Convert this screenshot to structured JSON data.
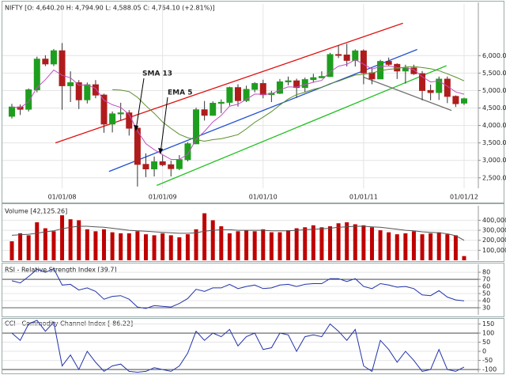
{
  "chart_data": [
    {
      "type": "candlestick",
      "title": "NIFTY [O: 4,640.20 H: 4,794.90 L: 4,588.05 C: 4,764.10 (+2.81%)]",
      "categories": [
        null,
        null,
        null,
        null,
        null,
        null,
        "01/01/08",
        null,
        null,
        null,
        null,
        null,
        null,
        null,
        null,
        null,
        null,
        null,
        "01/01/09",
        null,
        null,
        null,
        null,
        null,
        null,
        null,
        null,
        null,
        null,
        null,
        "01/01/10",
        null,
        null,
        null,
        null,
        null,
        null,
        null,
        null,
        null,
        null,
        null,
        "01/01/11",
        null,
        null,
        null,
        null,
        null,
        null,
        null,
        null,
        null,
        null,
        null,
        "01/01/12"
      ],
      "open": [
        4263,
        4528,
        4464,
        5021,
        5900,
        5762,
        6139,
        5137,
        5224,
        4735,
        5166,
        4870,
        4040,
        4332,
        4360,
        3921,
        2885,
        2755,
        2959,
        2874,
        2763,
        3021,
        3474,
        4449,
        4291,
        4636,
        4662,
        5084,
        4712,
        5033,
        5201,
        4882,
        4922,
        5249,
        5278,
        5087,
        5313,
        5368,
        5402,
        6030,
        6018,
        5863,
        6135,
        5506,
        5333,
        5834,
        5750,
        5560,
        5647,
        5482,
        5001,
        4943,
        5327,
        4832,
        4640.2
      ],
      "high": [
        4620,
        4600,
        5060,
        5970,
        6010,
        6190,
        6360,
        5550,
        5300,
        5230,
        5300,
        4910,
        4400,
        4650,
        4440,
        3950,
        3200,
        3110,
        3150,
        2990,
        3150,
        3520,
        4510,
        4700,
        4690,
        4745,
        5110,
        5180,
        5140,
        5240,
        5310,
        4990,
        5330,
        5400,
        5340,
        5370,
        5480,
        5550,
        6080,
        6290,
        6340,
        6180,
        6180,
        5640,
        5880,
        5945,
        5780,
        5740,
        5740,
        5560,
        5170,
        5400,
        5400,
        4860,
        4794.9
      ],
      "low": [
        4200,
        4300,
        4400,
        4950,
        5700,
        5700,
        4450,
        4670,
        4470,
        4630,
        4780,
        3790,
        3800,
        4150,
        3710,
        2250,
        2520,
        2540,
        2830,
        2540,
        2720,
        2970,
        3470,
        4140,
        4280,
        4350,
        4570,
        4540,
        4670,
        4950,
        4780,
        4670,
        4900,
        5150,
        4790,
        4960,
        5230,
        5350,
        5390,
        5930,
        5690,
        5690,
        5180,
        5180,
        5350,
        5690,
        5330,
        5200,
        5450,
        4720,
        4720,
        4730,
        4640,
        4530,
        4588.05
      ],
      "close": [
        4528,
        4464,
        5021,
        5900,
        5762,
        6139,
        5137,
        5224,
        4735,
        5166,
        4870,
        4040,
        4332,
        4360,
        3921,
        2885,
        2755,
        2959,
        2874,
        2763,
        3021,
        3474,
        4449,
        4291,
        4636,
        4662,
        5084,
        4712,
        5033,
        5201,
        4882,
        4922,
        5249,
        5278,
        5087,
        5313,
        5368,
        5402,
        6030,
        6018,
        5863,
        6135,
        5506,
        5333,
        5834,
        5750,
        5560,
        5647,
        5482,
        5001,
        4943,
        5327,
        4832,
        4624,
        4764.1
      ],
      "up_color": "#1e9e1e",
      "down_color": "#b01c1c",
      "series": [
        {
          "name": "SMA 13",
          "color": "#5a8f2a",
          "values": [
            null,
            null,
            null,
            null,
            null,
            null,
            null,
            null,
            null,
            null,
            null,
            null,
            5024,
            5012,
            4970,
            4805,
            4564,
            4348,
            4097,
            3914,
            3745,
            3648,
            3593,
            3548,
            3594,
            3619,
            3675,
            3736,
            3901,
            4089,
            4237,
            4395,
            4586,
            4759,
            4884,
            4950,
            5033,
            5092,
            5197,
            5269,
            5357,
            5442,
            5466,
            5500,
            5570,
            5609,
            5631,
            5674,
            5687,
            5659,
            5623,
            5569,
            5478,
            5383,
            5277
          ]
        },
        {
          "name": "EMA 5",
          "color": "#c050c0",
          "values": [
            4528,
            4507,
            4678,
            5085,
            5311,
            5587,
            5437,
            5366,
            5156,
            5159,
            5063,
            4722,
            4592,
            4515,
            4317,
            3840,
            3478,
            3305,
            3161,
            3028,
            3026,
            3175,
            3600,
            3830,
            4099,
            4287,
            4553,
            4606,
            4748,
            4899,
            4893,
            4903,
            5018,
            5105,
            5099,
            5170,
            5236,
            5291,
            5537,
            5697,
            5752,
            5880,
            5755,
            5614,
            5687,
            5708,
            5659,
            5655,
            5597,
            5398,
            5246,
            5273,
            5126,
            4959,
            4894
          ]
        }
      ],
      "trendlines": [
        {
          "color": "#e01010",
          "x": [
            5.2,
            46.7
          ],
          "values": [
            3500,
            6929
          ]
        },
        {
          "color": "#2050d0",
          "x": [
            11.6,
            48.4
          ],
          "values": [
            2681,
            6177
          ]
        },
        {
          "color": "#20c020",
          "x": [
            17.3,
            51.9
          ],
          "values": [
            2283,
            5712
          ]
        },
        {
          "color": "#707070",
          "x": [
            42,
            52.5
          ],
          "values": [
            5381,
            4429
          ]
        }
      ],
      "ylim": [
        2200,
        7480
      ],
      "yticks": [
        {
          "value": 2500,
          "label": "2,500.00"
        },
        {
          "value": 3000,
          "label": "3,000.00"
        },
        {
          "value": 3500,
          "label": "3,500.00"
        },
        {
          "value": 4000,
          "label": "4,000.00"
        },
        {
          "value": 4500,
          "label": "4,500.00"
        },
        {
          "value": 5000,
          "label": "5,000.00"
        },
        {
          "value": 5500,
          "label": "5,500.00"
        },
        {
          "value": 6000,
          "label": "6,000.00"
        }
      ],
      "grid": true
    },
    {
      "type": "bar",
      "title": "Volume [42,125.26]",
      "series": [
        {
          "name": "Volume",
          "color": "#c00000",
          "values": [
            190000,
            270000,
            250000,
            380000,
            320000,
            290000,
            450000,
            410000,
            400000,
            310000,
            290000,
            310000,
            280000,
            270000,
            270000,
            290000,
            260000,
            250000,
            270000,
            250000,
            230000,
            260000,
            310000,
            470000,
            400000,
            340000,
            270000,
            290000,
            300000,
            290000,
            310000,
            280000,
            280000,
            300000,
            320000,
            330000,
            350000,
            330000,
            340000,
            370000,
            380000,
            360000,
            350000,
            330000,
            300000,
            280000,
            260000,
            270000,
            290000,
            260000,
            270000,
            280000,
            260000,
            250000,
            42125.26
          ]
        },
        {
          "type": "line",
          "color": "#555555",
          "values": [
            250000,
            255000,
            260000,
            270000,
            285000,
            295000,
            315000,
            330000,
            340000,
            340000,
            335000,
            330000,
            320000,
            310000,
            300000,
            295000,
            290000,
            285000,
            280000,
            275000,
            270000,
            270000,
            275000,
            290000,
            300000,
            305000,
            305000,
            300000,
            300000,
            300000,
            300000,
            295000,
            295000,
            295000,
            300000,
            305000,
            310000,
            315000,
            320000,
            330000,
            335000,
            340000,
            340000,
            335000,
            330000,
            320000,
            310000,
            300000,
            295000,
            285000,
            280000,
            275000,
            265000,
            245000,
            200000
          ]
        }
      ],
      "ylim": [
        0,
        530000
      ],
      "yticks": [
        {
          "value": 100000,
          "label": "100,000"
        },
        {
          "value": 200000,
          "label": "200,000"
        },
        {
          "value": 300000,
          "label": "300,000"
        },
        {
          "value": 400000,
          "label": "400,000"
        }
      ],
      "grid": true
    },
    {
      "type": "line",
      "title": "RSI - Relative Strength Index [39.7]",
      "series": [
        {
          "color": "#2233aa",
          "values": [
            68,
            65,
            74,
            84,
            80,
            85,
            62,
            63,
            55,
            58,
            53,
            42,
            46,
            47,
            42,
            31,
            29,
            33,
            32,
            31,
            36,
            43,
            56,
            53,
            58,
            58,
            63,
            57,
            60,
            62,
            57,
            58,
            62,
            63,
            60,
            63,
            64,
            64,
            71,
            71,
            67,
            71,
            60,
            57,
            64,
            62,
            59,
            60,
            57,
            48,
            47,
            54,
            45,
            41,
            39.7
          ]
        }
      ],
      "hlines": [
        70,
        30
      ],
      "ylim": [
        20,
        89
      ],
      "yticks": [
        30,
        40,
        50,
        60,
        70,
        80
      ],
      "grid": true
    },
    {
      "type": "line",
      "title": "CCI - Commodity Channel Index [-86.22]",
      "series": [
        {
          "color": "#2233aa",
          "values": [
            100,
            60,
            150,
            170,
            110,
            160,
            -80,
            -20,
            -100,
            0,
            -60,
            -110,
            -80,
            -70,
            -110,
            -115,
            -110,
            -90,
            -100,
            -110,
            -80,
            -10,
            110,
            60,
            100,
            80,
            120,
            30,
            80,
            100,
            10,
            20,
            100,
            90,
            0,
            80,
            90,
            80,
            150,
            110,
            60,
            120,
            -80,
            -110,
            60,
            10,
            -60,
            0,
            -50,
            -110,
            -100,
            10,
            -100,
            -110,
            -86.22
          ]
        }
      ],
      "hlines": [
        100,
        -100
      ],
      "ylim": [
        -117,
        174
      ],
      "yticks": [
        -100,
        -50,
        0,
        50,
        100,
        150
      ],
      "grid": true
    }
  ]
}
